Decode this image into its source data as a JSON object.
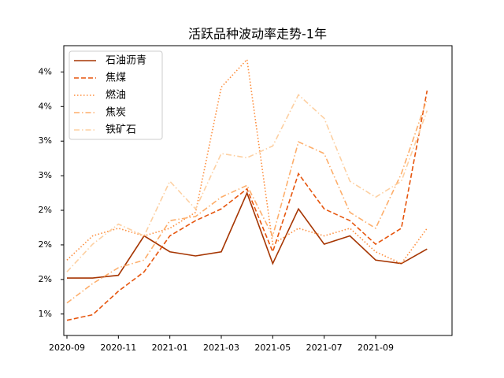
{
  "chart_data": {
    "type": "line",
    "title": "活跃品种波动率走势-1年",
    "x": [
      "2020-09",
      "2020-10",
      "2020-11",
      "2020-12",
      "2021-01",
      "2021-02",
      "2021-03",
      "2021-04",
      "2021-05",
      "2021-06",
      "2021-07",
      "2021-08",
      "2021-09",
      "2021-10",
      "2021-11"
    ],
    "xlim": [
      "2020-09",
      "2021-12"
    ],
    "xticks": [
      "2020-09",
      "2020-11",
      "2021-01",
      "2021-03",
      "2021-05",
      "2021-07",
      "2021-09"
    ],
    "ylim": [
      0.69,
      4.88
    ],
    "yticks": [
      {
        "value": 1.0,
        "label": "1%"
      },
      {
        "value": 1.5,
        "label": "2%"
      },
      {
        "value": 2.0,
        "label": "2%"
      },
      {
        "value": 2.5,
        "label": "2%"
      },
      {
        "value": 3.0,
        "label": "3%"
      },
      {
        "value": 3.5,
        "label": "3%"
      },
      {
        "value": 4.0,
        "label": "4%"
      },
      {
        "value": 4.5,
        "label": "4%"
      }
    ],
    "legend": "upper left",
    "series": [
      {
        "name": "石油沥青",
        "color": "#a63603",
        "dash": "solid",
        "values": [
          1.52,
          1.52,
          1.56,
          2.13,
          1.9,
          1.84,
          1.9,
          2.75,
          1.73,
          2.52,
          2.01,
          2.13,
          1.78,
          1.73,
          1.94
        ]
      },
      {
        "name": "焦煤",
        "color": "#e6550d",
        "dash": "dashed",
        "values": [
          0.91,
          0.99,
          1.33,
          1.61,
          2.13,
          2.35,
          2.52,
          2.81,
          1.9,
          3.03,
          2.52,
          2.35,
          2.01,
          2.24,
          4.23
        ]
      },
      {
        "name": "燃油",
        "color": "#fd8d3c",
        "dash": "dotted",
        "values": [
          1.78,
          2.13,
          2.24,
          2.13,
          2.24,
          2.47,
          4.28,
          4.68,
          2.01,
          2.24,
          2.13,
          2.24,
          1.9,
          1.73,
          2.24
        ]
      },
      {
        "name": "焦炭",
        "color": "#fdae6b",
        "dash": "dashdot",
        "values": [
          1.16,
          1.44,
          1.67,
          1.78,
          2.35,
          2.41,
          2.69,
          2.86,
          2.13,
          3.49,
          3.32,
          2.47,
          2.24,
          3.03,
          4.11
        ]
      },
      {
        "name": "铁矿石",
        "color": "#fdd0a2",
        "dash": "dashdot",
        "values": [
          1.61,
          2.01,
          2.3,
          2.13,
          2.92,
          2.52,
          3.32,
          3.26,
          3.43,
          4.17,
          3.83,
          2.92,
          2.69,
          2.92,
          3.94
        ]
      }
    ]
  }
}
